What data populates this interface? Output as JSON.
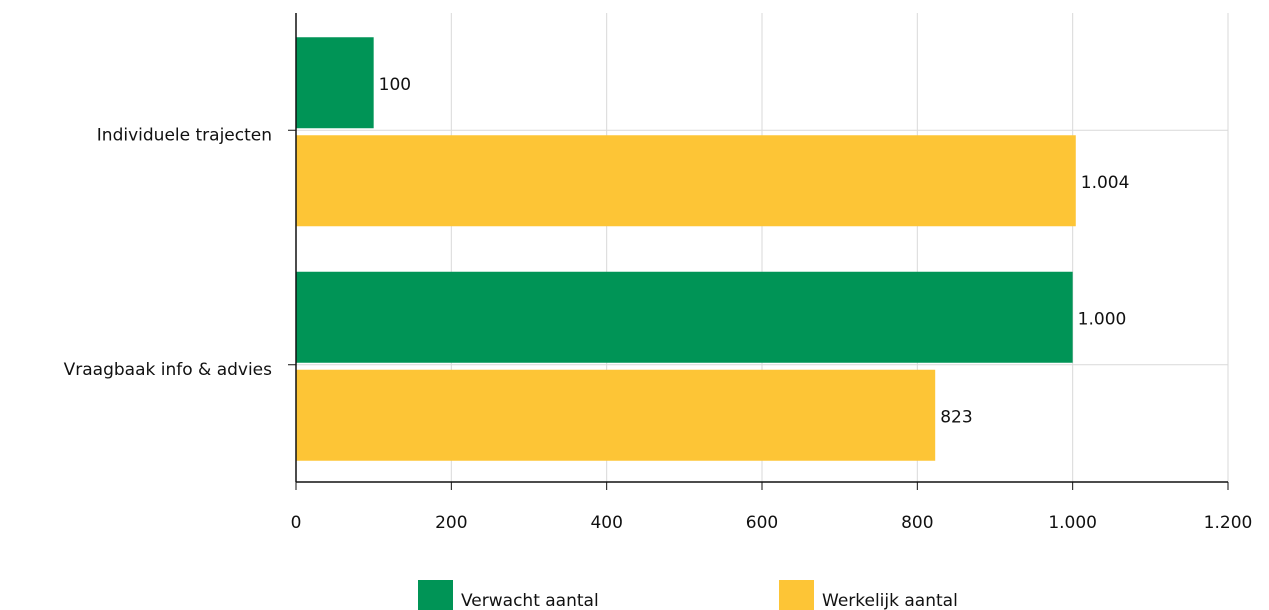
{
  "chart_data": {
    "type": "bar",
    "orientation": "horizontal",
    "categories": [
      "Individuele trajecten",
      "Vraagbaak info & advies"
    ],
    "series": [
      {
        "name": "Verwacht aantal",
        "color": "#009456",
        "values": [
          100,
          1000
        ],
        "value_labels": [
          "100",
          "1.000"
        ]
      },
      {
        "name": "Werkelijk aantal",
        "color": "#fdc536",
        "values": [
          1004,
          823
        ],
        "value_labels": [
          "1.004",
          "823"
        ]
      }
    ],
    "xlim": [
      0,
      1200
    ],
    "xticks": [
      0,
      200,
      400,
      600,
      800,
      {
        "value": 1000,
        "label": "1.000"
      },
      {
        "value": 1200,
        "label": "1.200"
      }
    ],
    "grid": true,
    "legend": "bottom"
  }
}
